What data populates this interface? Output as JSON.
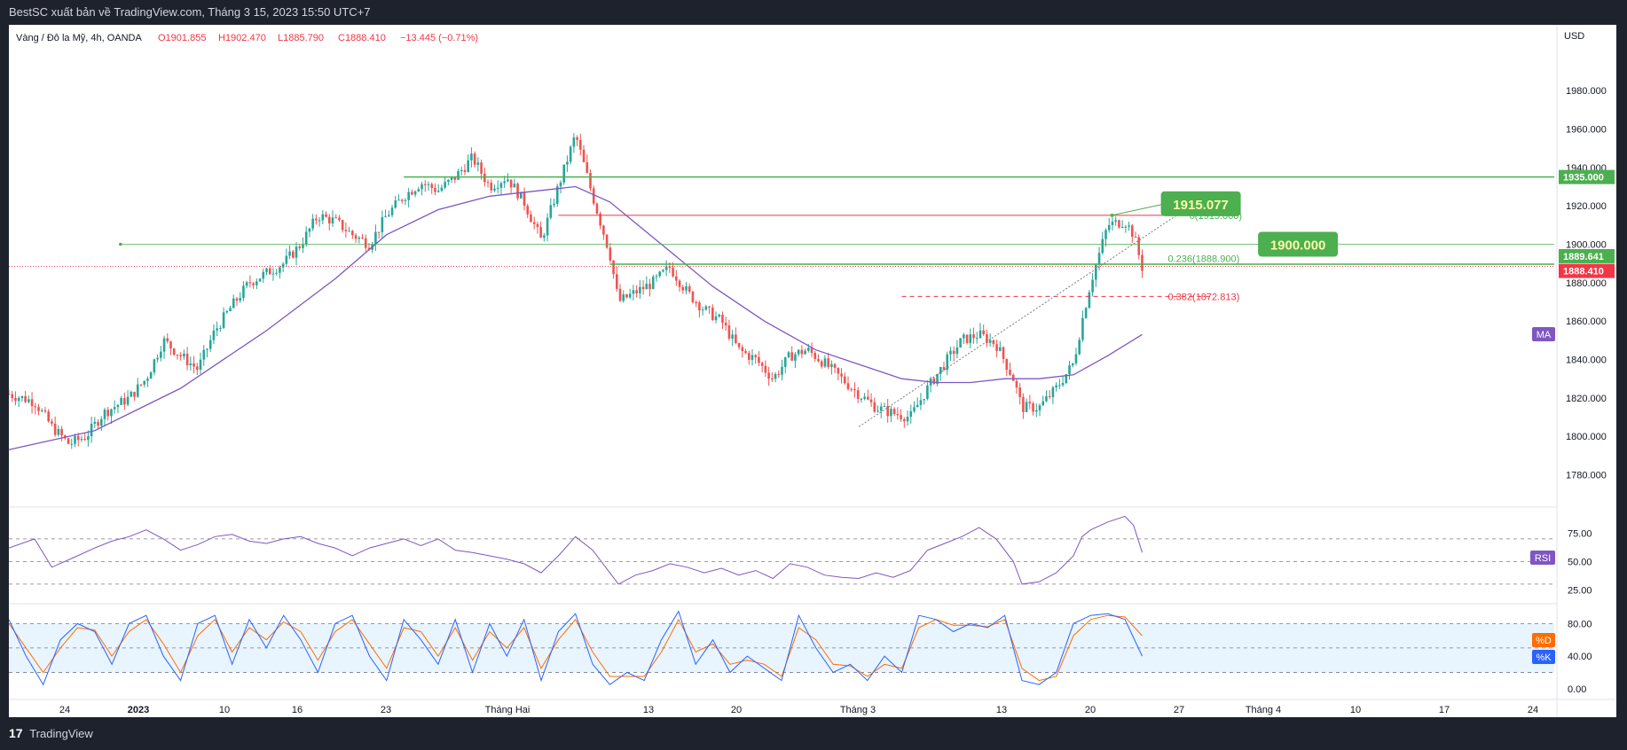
{
  "header": {
    "publisher_text": "BestSC xuất bản về TradingView.com, Tháng 3 15, 2023 15:50 UTC+7"
  },
  "footer": {
    "brand": "TradingView",
    "brand_glyph": "17"
  },
  "legend": {
    "symbol": "Vàng / Đô la Mỹ, 4h, OANDA",
    "open": "O1901.855",
    "high": "H1902.470",
    "low": "L1885.790",
    "close": "C1888.410",
    "change": "−13.445 (−0.71%)"
  },
  "chart_data": {
    "type": "candlestick",
    "currency_label": "USD",
    "x_tick_labels": [
      "24",
      "2023",
      "10",
      "16",
      "23",
      "Tháng Hai",
      "13",
      "20",
      "Tháng 3",
      "13",
      "20",
      "27",
      "Tháng 4",
      "10",
      "17",
      "24"
    ],
    "y_tick_labels": [
      "1780.000",
      "1800.000",
      "1820.000",
      "1840.000",
      "1860.000",
      "1880.000",
      "1900.000",
      "1920.000",
      "1940.000",
      "1960.000",
      "1980.000"
    ],
    "ylim": [
      1765,
      2005
    ],
    "last_price": "1888.410",
    "ma_value": "1889.641",
    "ma_tag": "MA",
    "close_path": [
      [
        0,
        1822
      ],
      [
        3,
        1818
      ],
      [
        5,
        1805
      ],
      [
        7,
        1796
      ],
      [
        9,
        1800
      ],
      [
        11,
        1812
      ],
      [
        14,
        1820
      ],
      [
        16,
        1830
      ],
      [
        18,
        1850
      ],
      [
        20,
        1842
      ],
      [
        22,
        1835
      ],
      [
        24,
        1855
      ],
      [
        26,
        1868
      ],
      [
        28,
        1880
      ],
      [
        30,
        1885
      ],
      [
        32,
        1890
      ],
      [
        34,
        1900
      ],
      [
        36,
        1915
      ],
      [
        38,
        1912
      ],
      [
        40,
        1905
      ],
      [
        42,
        1900
      ],
      [
        44,
        1915
      ],
      [
        46,
        1925
      ],
      [
        48,
        1932
      ],
      [
        50,
        1928
      ],
      [
        52,
        1935
      ],
      [
        54,
        1945
      ],
      [
        56,
        1930
      ],
      [
        58,
        1935
      ],
      [
        60,
        1922
      ],
      [
        62,
        1902
      ],
      [
        64,
        1930
      ],
      [
        66,
        1957
      ],
      [
        68,
        1925
      ],
      [
        70,
        1895
      ],
      [
        71,
        1870
      ],
      [
        73,
        1875
      ],
      [
        75,
        1880
      ],
      [
        77,
        1888
      ],
      [
        79,
        1875
      ],
      [
        81,
        1866
      ],
      [
        83,
        1860
      ],
      [
        85,
        1845
      ],
      [
        87,
        1840
      ],
      [
        89,
        1830
      ],
      [
        91,
        1842
      ],
      [
        93,
        1845
      ],
      [
        95,
        1838
      ],
      [
        97,
        1830
      ],
      [
        99,
        1822
      ],
      [
        101,
        1815
      ],
      [
        103,
        1812
      ],
      [
        105,
        1810
      ],
      [
        107,
        1825
      ],
      [
        109,
        1838
      ],
      [
        111,
        1850
      ],
      [
        113,
        1853
      ],
      [
        115,
        1848
      ],
      [
        117,
        1830
      ],
      [
        118,
        1815
      ],
      [
        120,
        1815
      ],
      [
        122,
        1825
      ],
      [
        124,
        1838
      ],
      [
        125,
        1860
      ],
      [
        126,
        1880
      ],
      [
        128,
        1910
      ],
      [
        130,
        1912
      ],
      [
        131,
        1905
      ],
      [
        132,
        1888
      ]
    ],
    "ma_path": [
      [
        0,
        1793
      ],
      [
        10,
        1803
      ],
      [
        20,
        1825
      ],
      [
        30,
        1855
      ],
      [
        38,
        1882
      ],
      [
        44,
        1905
      ],
      [
        50,
        1918
      ],
      [
        56,
        1925
      ],
      [
        62,
        1928
      ],
      [
        66,
        1930
      ],
      [
        70,
        1922
      ],
      [
        76,
        1900
      ],
      [
        82,
        1878
      ],
      [
        88,
        1860
      ],
      [
        94,
        1845
      ],
      [
        100,
        1836
      ],
      [
        104,
        1830
      ],
      [
        108,
        1828
      ],
      [
        112,
        1828
      ],
      [
        116,
        1830
      ],
      [
        120,
        1830
      ],
      [
        124,
        1832
      ],
      [
        128,
        1842
      ],
      [
        132,
        1853
      ]
    ],
    "support_resistance": [
      {
        "value": 1935.0,
        "label": "1935.000"
      },
      {
        "value": 1889.641
      },
      {
        "value": 1900.0,
        "label": "1900.000"
      }
    ],
    "fib_levels": [
      {
        "ratio": "0",
        "value": 1915.06,
        "label": "0(1915.060)"
      },
      {
        "ratio": "0.236",
        "value": 1888.9,
        "label": "0.236(1888.900)"
      },
      {
        "ratio": "0.382",
        "value": 1872.813,
        "label": "0.382(1872.813)"
      }
    ],
    "annotations": [
      {
        "label": "1915.077",
        "value": 1915.077
      },
      {
        "label": "1900.000",
        "value": 1900.0
      }
    ],
    "trendline": {
      "from": [
        99,
        1805
      ],
      "to": [
        137,
        1918
      ]
    },
    "rsi": {
      "tag": "RSI",
      "levels": [
        70,
        50,
        30
      ],
      "tick_labels": [
        "75.00",
        "50.00",
        "25.00"
      ],
      "ylim": [
        15,
        95
      ],
      "path": [
        [
          0,
          62
        ],
        [
          3,
          70
        ],
        [
          5,
          45
        ],
        [
          8,
          55
        ],
        [
          10,
          62
        ],
        [
          12,
          68
        ],
        [
          14,
          72
        ],
        [
          16,
          78
        ],
        [
          18,
          70
        ],
        [
          20,
          60
        ],
        [
          22,
          65
        ],
        [
          24,
          72
        ],
        [
          26,
          74
        ],
        [
          28,
          68
        ],
        [
          30,
          66
        ],
        [
          32,
          70
        ],
        [
          34,
          72
        ],
        [
          36,
          66
        ],
        [
          38,
          62
        ],
        [
          40,
          55
        ],
        [
          42,
          62
        ],
        [
          44,
          66
        ],
        [
          46,
          70
        ],
        [
          48,
          64
        ],
        [
          50,
          70
        ],
        [
          52,
          60
        ],
        [
          54,
          58
        ],
        [
          56,
          55
        ],
        [
          58,
          52
        ],
        [
          60,
          48
        ],
        [
          62,
          40
        ],
        [
          64,
          55
        ],
        [
          66,
          72
        ],
        [
          68,
          60
        ],
        [
          70,
          40
        ],
        [
          71,
          30
        ],
        [
          73,
          38
        ],
        [
          75,
          42
        ],
        [
          77,
          48
        ],
        [
          79,
          45
        ],
        [
          81,
          40
        ],
        [
          83,
          44
        ],
        [
          85,
          38
        ],
        [
          87,
          42
        ],
        [
          89,
          35
        ],
        [
          91,
          48
        ],
        [
          93,
          45
        ],
        [
          95,
          38
        ],
        [
          97,
          36
        ],
        [
          99,
          35
        ],
        [
          101,
          40
        ],
        [
          103,
          36
        ],
        [
          105,
          42
        ],
        [
          107,
          60
        ],
        [
          109,
          66
        ],
        [
          111,
          72
        ],
        [
          113,
          80
        ],
        [
          115,
          70
        ],
        [
          117,
          50
        ],
        [
          118,
          30
        ],
        [
          120,
          32
        ],
        [
          122,
          40
        ],
        [
          124,
          55
        ],
        [
          125,
          72
        ],
        [
          126,
          78
        ],
        [
          128,
          85
        ],
        [
          130,
          90
        ],
        [
          131,
          82
        ],
        [
          132,
          58
        ]
      ]
    },
    "stoch": {
      "tags": [
        "%D",
        "%K"
      ],
      "levels": [
        80,
        50,
        20
      ],
      "tick_labels": [
        "80.00",
        "40.00",
        "0.00"
      ],
      "ylim": [
        -10,
        100
      ],
      "k_path": [
        [
          0,
          85
        ],
        [
          2,
          40
        ],
        [
          4,
          5
        ],
        [
          6,
          60
        ],
        [
          8,
          80
        ],
        [
          10,
          70
        ],
        [
          12,
          30
        ],
        [
          14,
          80
        ],
        [
          16,
          90
        ],
        [
          18,
          40
        ],
        [
          20,
          10
        ],
        [
          22,
          80
        ],
        [
          24,
          90
        ],
        [
          26,
          30
        ],
        [
          28,
          85
        ],
        [
          30,
          50
        ],
        [
          32,
          90
        ],
        [
          34,
          60
        ],
        [
          36,
          20
        ],
        [
          38,
          80
        ],
        [
          40,
          90
        ],
        [
          42,
          40
        ],
        [
          44,
          10
        ],
        [
          46,
          85
        ],
        [
          48,
          60
        ],
        [
          50,
          30
        ],
        [
          52,
          85
        ],
        [
          54,
          20
        ],
        [
          56,
          80
        ],
        [
          58,
          40
        ],
        [
          60,
          85
        ],
        [
          62,
          10
        ],
        [
          64,
          70
        ],
        [
          66,
          92
        ],
        [
          68,
          30
        ],
        [
          70,
          5
        ],
        [
          72,
          20
        ],
        [
          74,
          10
        ],
        [
          76,
          60
        ],
        [
          78,
          95
        ],
        [
          80,
          30
        ],
        [
          82,
          60
        ],
        [
          84,
          20
        ],
        [
          86,
          40
        ],
        [
          88,
          25
        ],
        [
          90,
          10
        ],
        [
          92,
          90
        ],
        [
          94,
          50
        ],
        [
          96,
          20
        ],
        [
          98,
          30
        ],
        [
          100,
          10
        ],
        [
          102,
          40
        ],
        [
          104,
          20
        ],
        [
          106,
          90
        ],
        [
          108,
          85
        ],
        [
          110,
          70
        ],
        [
          112,
          80
        ],
        [
          114,
          75
        ],
        [
          116,
          90
        ],
        [
          118,
          10
        ],
        [
          120,
          5
        ],
        [
          122,
          20
        ],
        [
          124,
          80
        ],
        [
          126,
          90
        ],
        [
          128,
          92
        ],
        [
          130,
          85
        ],
        [
          132,
          40
        ]
      ],
      "d_path": [
        [
          0,
          80
        ],
        [
          2,
          50
        ],
        [
          4,
          20
        ],
        [
          6,
          50
        ],
        [
          8,
          75
        ],
        [
          10,
          72
        ],
        [
          12,
          40
        ],
        [
          14,
          70
        ],
        [
          16,
          85
        ],
        [
          18,
          55
        ],
        [
          20,
          20
        ],
        [
          22,
          65
        ],
        [
          24,
          85
        ],
        [
          26,
          45
        ],
        [
          28,
          75
        ],
        [
          30,
          60
        ],
        [
          32,
          82
        ],
        [
          34,
          70
        ],
        [
          36,
          35
        ],
        [
          38,
          70
        ],
        [
          40,
          85
        ],
        [
          42,
          55
        ],
        [
          44,
          25
        ],
        [
          46,
          75
        ],
        [
          48,
          70
        ],
        [
          50,
          40
        ],
        [
          52,
          75
        ],
        [
          54,
          35
        ],
        [
          56,
          70
        ],
        [
          58,
          50
        ],
        [
          60,
          75
        ],
        [
          62,
          25
        ],
        [
          64,
          60
        ],
        [
          66,
          85
        ],
        [
          68,
          45
        ],
        [
          70,
          15
        ],
        [
          72,
          15
        ],
        [
          74,
          15
        ],
        [
          76,
          45
        ],
        [
          78,
          85
        ],
        [
          80,
          45
        ],
        [
          82,
          55
        ],
        [
          84,
          30
        ],
        [
          86,
          35
        ],
        [
          88,
          30
        ],
        [
          90,
          15
        ],
        [
          92,
          75
        ],
        [
          94,
          60
        ],
        [
          96,
          30
        ],
        [
          98,
          28
        ],
        [
          100,
          15
        ],
        [
          102,
          30
        ],
        [
          104,
          25
        ],
        [
          106,
          75
        ],
        [
          108,
          85
        ],
        [
          110,
          78
        ],
        [
          112,
          78
        ],
        [
          114,
          76
        ],
        [
          116,
          85
        ],
        [
          118,
          25
        ],
        [
          120,
          10
        ],
        [
          122,
          15
        ],
        [
          124,
          65
        ],
        [
          126,
          85
        ],
        [
          128,
          90
        ],
        [
          130,
          88
        ],
        [
          132,
          65
        ]
      ]
    }
  },
  "colors": {
    "up": "#26a69a",
    "down": "#ef5350",
    "ma": "#7e57c2",
    "green_line": "#4caf50",
    "red_line": "#f23645",
    "k_line": "#2962ff",
    "d_line": "#ff6d00"
  }
}
